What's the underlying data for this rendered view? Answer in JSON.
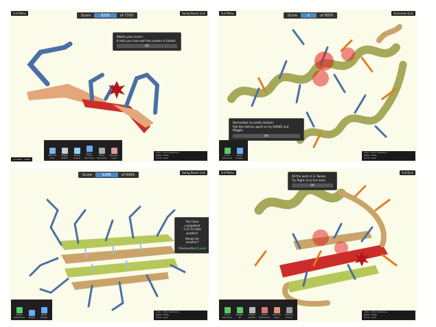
{
  "panel1": {
    "menu": "Full Menu",
    "corner": "Swing Beam Link",
    "score_label": "Score",
    "score_value": "8230",
    "score_target": "of 7700",
    "tip_line1": "Watch your score!",
    "tip_line2": "It tells you how well the protein is folded.",
    "tip_ok": "OK",
    "tools": [
      {
        "label": "Rebuild Prot",
        "icon": "rebuild-icon",
        "color": "#7fb5e8"
      },
      {
        "label": "Wiggle Sidech",
        "icon": "wiggle-icon",
        "color": "#cccccc"
      },
      {
        "label": "Shake Sidech",
        "icon": "shake-icon",
        "color": "#8fd0ff"
      },
      {
        "label": "Open Folder Structure",
        "icon": "folder-icon",
        "color": "#66aaff"
      },
      {
        "label": "Save Structure",
        "icon": "save-icon",
        "color": "#aaaaaa"
      },
      {
        "label": "Recipes Cook",
        "icon": "recipe-icon",
        "color": "#d99"
      }
    ],
    "status_left": "ACTIONS",
    "status_left2": "UNDO",
    "hint1": "Click + Pull: backbone",
    "hint2": "Right: rotate",
    "hint3": "Scroll: zoom"
  },
  "panel2": {
    "menu": "Full Menu",
    "corner": "Overview Quiz",
    "score_label": "Score",
    "score_value": "0",
    "score_target": "of 8050",
    "tip_line1": "Remember to avoid clashes!",
    "tip_line2": "Pull the helices apart or try SHAKE and Wiggle.",
    "tip_ok": "OK",
    "tools": [
      {
        "label": "Undo Structure",
        "icon": "undo-icon",
        "color": "#55cc66"
      },
      {
        "label": "Reset Puzzle",
        "icon": "reset-icon",
        "color": "#66aaff"
      }
    ],
    "hint1": "Click + Pull: backbone",
    "hint2": "Right: rotate",
    "hint3": "Scroll: zoom"
  },
  "panel3": {
    "score_label": "Score",
    "score_value": "6286",
    "score_target": "of 8400",
    "corner": "Swing Beam Link",
    "tip_line1": "You have completed",
    "tip_line2": "2 of 12 beta puzzles!",
    "tip_line3": "Ready for another?",
    "choice_a": "Previous",
    "choice_b": "Next Level",
    "tools": [
      {
        "label": "Shake Sidechains",
        "icon": "shake-icon",
        "color": "#55cc66"
      },
      {
        "label": "Wiggle",
        "icon": "wiggle-icon",
        "color": "#66aaff"
      },
      {
        "label": "Reset Puzzle",
        "icon": "reset-icon",
        "color": "#66aaff"
      }
    ],
    "hint1": "Click + Pull: backbone",
    "hint2": "Right: rotate",
    "hint3": "Scroll: zoom"
  },
  "panel4": {
    "menu": "Full Menu",
    "corner": "Full Quiz",
    "tip_line1": "All the work is in Tweak.",
    "tip_line2": "Try Right click the helix.",
    "tip_ok": "OK",
    "tools": [
      {
        "label": "Undo Structure",
        "icon": "undo-icon",
        "color": "#55cc66"
      },
      {
        "label": "Wiggle All",
        "icon": "wiggle-icon",
        "color": "#55cc66"
      },
      {
        "label": "Freeze Protein",
        "icon": "freeze-icon",
        "color": "#bbbbbb"
      },
      {
        "label": "Shake Sidechains",
        "icon": "shake-icon",
        "color": "#d77"
      },
      {
        "label": "Rebuild Parts",
        "icon": "rebuild-icon",
        "color": "#d97"
      },
      {
        "label": "Explore Puzzle",
        "icon": "explore-icon",
        "color": "#999"
      }
    ],
    "hint1": "Click + Pull: backbone",
    "hint2": "Right: rotate",
    "hint3": "Scroll: zoom"
  }
}
